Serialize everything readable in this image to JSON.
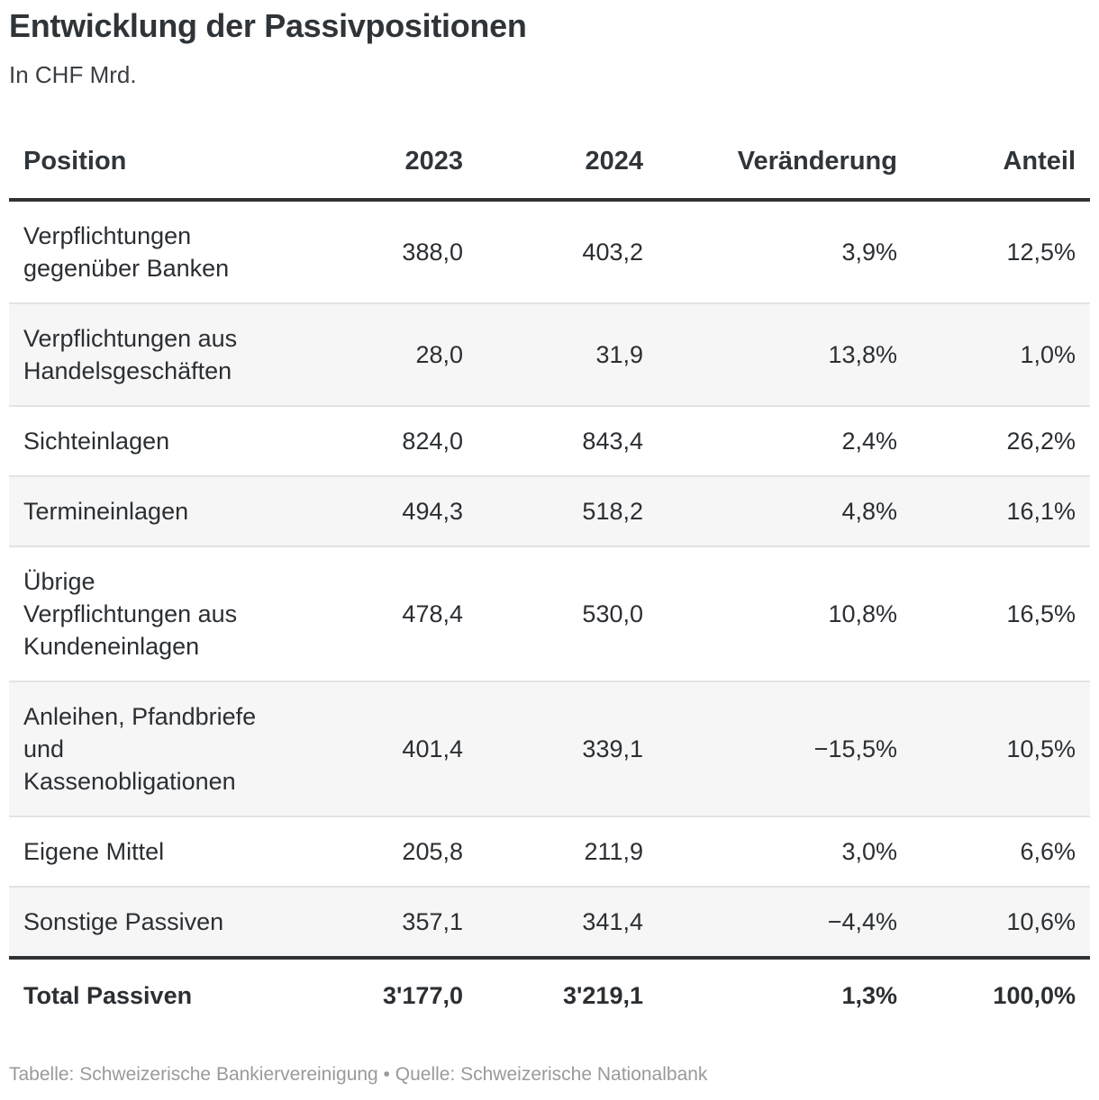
{
  "chart_data": {
    "type": "table",
    "title": "Entwicklung der Passivpositionen",
    "subtitle": "In CHF Mrd.",
    "columns": [
      "Position",
      "2023",
      "2024",
      "Veränderung",
      "Anteil"
    ],
    "rows": [
      {
        "position": "Verpflichtungen gegenüber Banken",
        "y2023": "388,0",
        "y2024": "403,2",
        "change": "3,9%",
        "share": "12,5%"
      },
      {
        "position": "Verpflichtungen aus Handelsgeschäften",
        "y2023": "28,0",
        "y2024": "31,9",
        "change": "13,8%",
        "share": "1,0%"
      },
      {
        "position": "Sichteinlagen",
        "y2023": "824,0",
        "y2024": "843,4",
        "change": "2,4%",
        "share": "26,2%"
      },
      {
        "position": "Termineinlagen",
        "y2023": "494,3",
        "y2024": "518,2",
        "change": "4,8%",
        "share": "16,1%"
      },
      {
        "position": "Übrige Verpflichtungen aus Kundeneinlagen",
        "y2023": "478,4",
        "y2024": "530,0",
        "change": "10,8%",
        "share": "16,5%"
      },
      {
        "position": "Anleihen, Pfandbriefe und Kassenobligationen",
        "y2023": "401,4",
        "y2024": "339,1",
        "change": "−15,5%",
        "share": "10,5%"
      },
      {
        "position": "Eigene Mittel",
        "y2023": "205,8",
        "y2024": "211,9",
        "change": "3,0%",
        "share": "6,6%"
      },
      {
        "position": "Sonstige Passiven",
        "y2023": "357,1",
        "y2024": "341,4",
        "change": "−4,4%",
        "share": "10,6%"
      }
    ],
    "total": {
      "position": "Total Passiven",
      "y2023": "3'177,0",
      "y2024": "3'219,1",
      "change": "1,3%",
      "share": "100,0%"
    },
    "footer": "Tabelle: Schweizerische Bankiervereinigung • Quelle: Schweizerische Nationalbank"
  }
}
